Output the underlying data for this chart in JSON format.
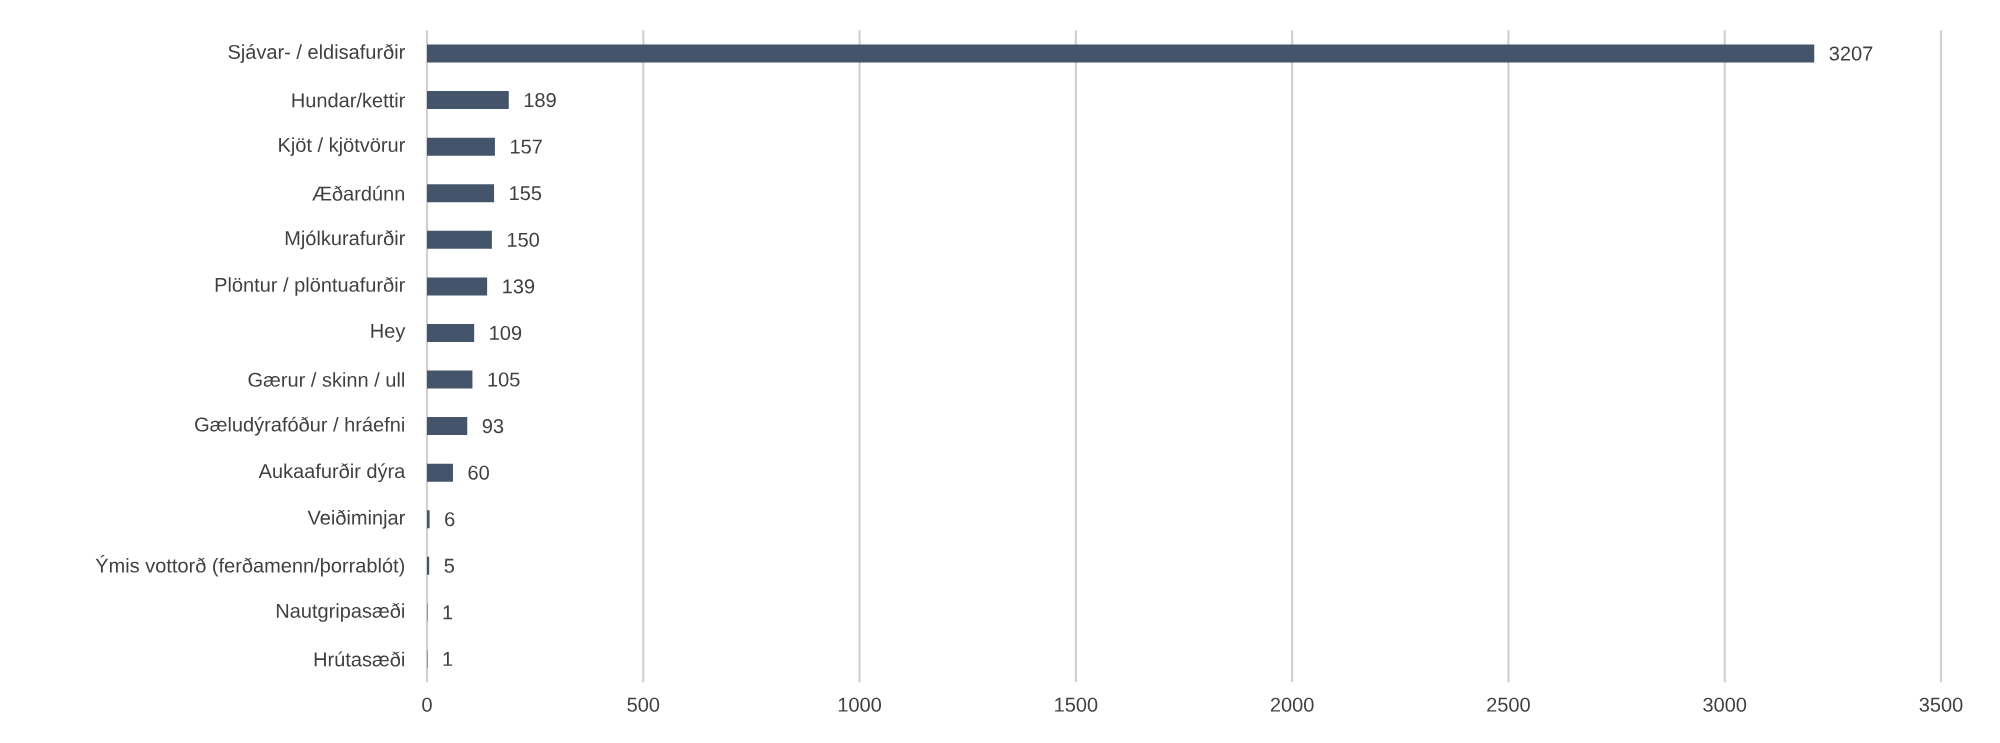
{
  "chart_data": {
    "type": "bar",
    "orientation": "horizontal",
    "categories": [
      "Sjávar- / eldisafurðir",
      "Hundar/kettir",
      "Kjöt / kjötvörur",
      "Æðardúnn",
      "Mjólkurafurðir",
      "Plöntur / plöntuafurðir",
      "Hey",
      "Gærur / skinn / ull",
      "Gæludýrafóður / hráefni",
      "Aukaafurðir dýra",
      "Veiðiminjar",
      "Ýmis vottorð (ferðamenn/þorrablót)",
      "Nautgripasæði",
      "Hrútasæði"
    ],
    "values": [
      3207,
      189,
      157,
      155,
      150,
      139,
      109,
      105,
      93,
      60,
      6,
      5,
      1,
      1
    ],
    "color": "#44546a",
    "xlim": [
      0,
      3500
    ],
    "xticks": [
      0,
      500,
      1000,
      1500,
      2000,
      2500,
      3000,
      3500
    ],
    "grid": "x",
    "data_labels": true
  }
}
